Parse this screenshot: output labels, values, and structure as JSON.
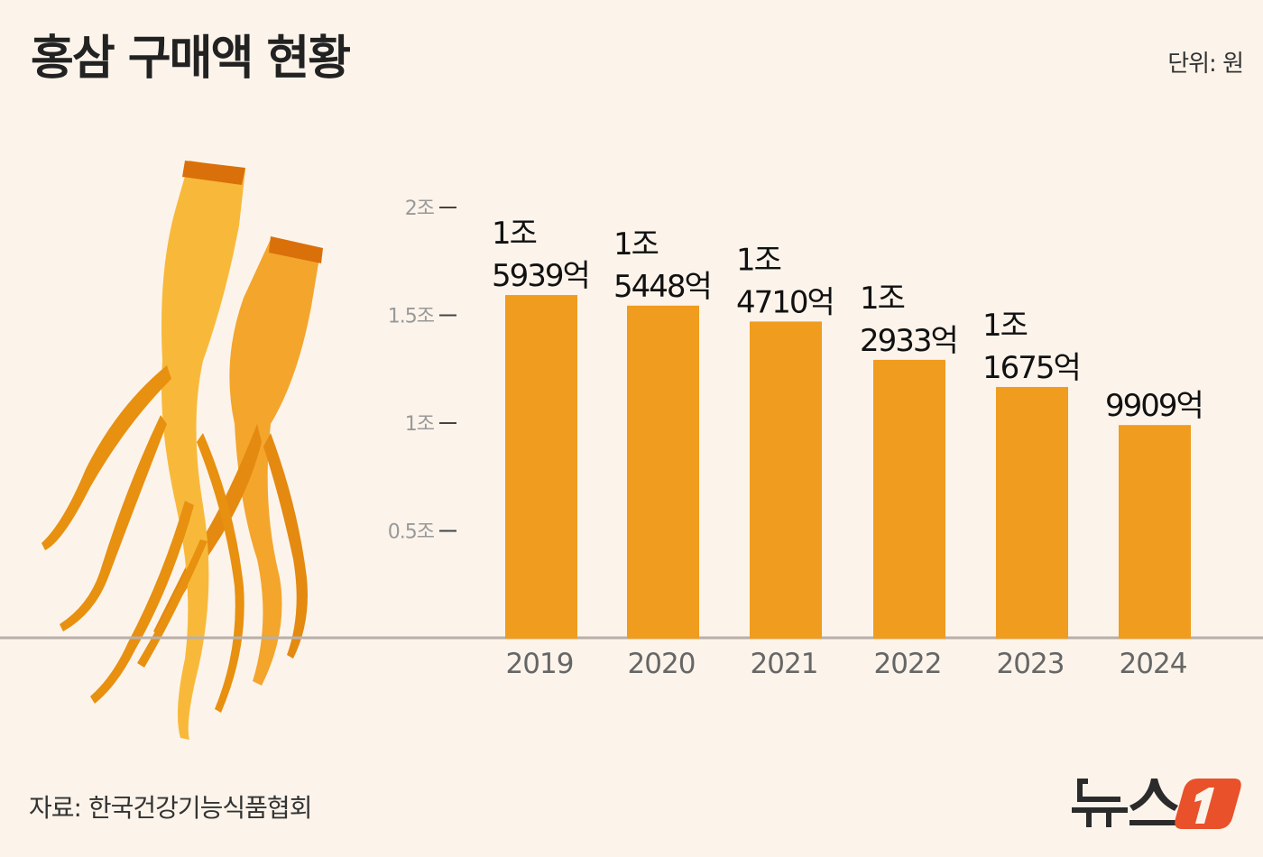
{
  "title": "홍삼 구매액 현황",
  "unit": "단위: 원",
  "source": "자료: 한국건강기능식품협회",
  "logo": {
    "text": "뉴스1",
    "brand_color": "#e8512a"
  },
  "colors": {
    "background": "#fcf4eb",
    "bar": "#f09c1f",
    "baseline": "#b8b0a8"
  },
  "chart_data": {
    "type": "bar",
    "title": "홍삼 구매액 현황",
    "categories": [
      "2019",
      "2020",
      "2021",
      "2022",
      "2023",
      "2024"
    ],
    "values": [
      1.5939,
      1.5448,
      1.471,
      1.2933,
      1.1675,
      0.9909
    ],
    "value_unit": "조 원",
    "data_labels": [
      [
        "1조",
        "5939억"
      ],
      [
        "1조",
        "5448억"
      ],
      [
        "1조",
        "4710억"
      ],
      [
        "1조",
        "2933억"
      ],
      [
        "1조",
        "1675억"
      ],
      [
        "",
        "9909억"
      ]
    ],
    "yticks": [
      {
        "value": 0.5,
        "label": "0.5조"
      },
      {
        "value": 1,
        "label": "1조"
      },
      {
        "value": 1.5,
        "label": "1.5조"
      },
      {
        "value": 2,
        "label": "2조"
      }
    ],
    "ylim": [
      0,
      2
    ],
    "grid": false,
    "legend": "none"
  }
}
